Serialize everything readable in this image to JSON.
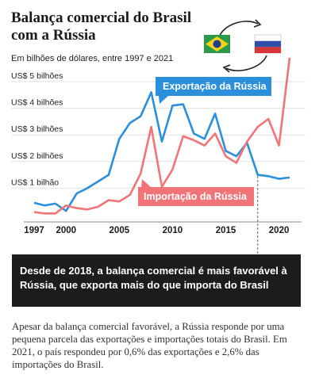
{
  "title": "Balança comercial do Brasil com a Rússia",
  "subtitle": "Em bilhões de dólares, entre 1997 e 2021",
  "flags": {
    "left": "brazil-flag",
    "right": "russia-flag"
  },
  "colors": {
    "export": "#2b8fdc",
    "import": "#f07478",
    "note_bg": "#1c1c1c"
  },
  "chart_data": {
    "type": "line",
    "x": [
      1997,
      1998,
      1999,
      2000,
      2001,
      2002,
      2003,
      2004,
      2005,
      2006,
      2007,
      2008,
      2009,
      2010,
      2011,
      2012,
      2013,
      2014,
      2015,
      2016,
      2017,
      2018,
      2019,
      2020,
      2021
    ],
    "xticks": [
      1997,
      2000,
      2005,
      2010,
      2015,
      2020
    ],
    "yticks": [
      1,
      2,
      3,
      4,
      5
    ],
    "ytick_labels": [
      "US$ 1 bilhão",
      "US$ 2 bilhões",
      "US$ 3 bilhões",
      "US$ 4 bilhões",
      "US$ 5 bilhões"
    ],
    "xlim": [
      1997,
      2021
    ],
    "ylim": [
      0,
      6
    ],
    "series": [
      {
        "name": "Exportação da Rússia",
        "color": "#2b8fdc",
        "values": [
          0.45,
          0.35,
          0.42,
          0.15,
          0.8,
          1.0,
          1.25,
          1.5,
          2.85,
          3.45,
          3.7,
          4.6,
          2.75,
          4.1,
          4.15,
          3.05,
          2.85,
          3.8,
          2.4,
          2.2,
          2.7,
          1.5,
          1.45,
          1.35,
          1.4
        ]
      },
      {
        "name": "Importação da Rússia",
        "color": "#f07478",
        "values": [
          0.1,
          0.05,
          0.05,
          0.35,
          0.25,
          0.2,
          0.3,
          0.55,
          0.5,
          0.75,
          1.55,
          3.3,
          1.05,
          1.7,
          2.95,
          2.8,
          2.6,
          3.05,
          2.2,
          1.95,
          2.75,
          3.3,
          3.6,
          2.6,
          5.9
        ]
      }
    ],
    "legend": {
      "export_label": "Exportação da Rússia",
      "import_label": "Importação da Rússia"
    },
    "annotation_year": 2018
  },
  "note": "Desde de 2018, a balança comercial é mais favorável à Rússia, que exporta mais do que importa do Brasil",
  "body": "Apesar da balança comercial favorável, a Rússia responde por uma pequena parcela das exportações e importações totais do Brasil. Em 2021, o país respondeu por 0,6% das exportações e 2,6% das importações do Brasil."
}
